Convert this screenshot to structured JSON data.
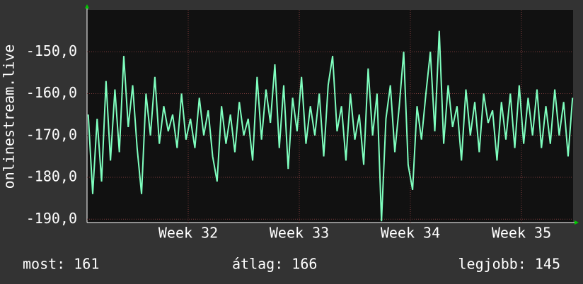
{
  "chart_data": {
    "type": "line",
    "y_label": "onlinestream.live",
    "x": [
      31.1,
      31.14,
      31.18,
      31.22,
      31.26,
      31.3,
      31.34,
      31.38,
      31.42,
      31.46,
      31.5,
      31.54,
      31.58,
      31.62,
      31.66,
      31.7,
      31.74,
      31.78,
      31.82,
      31.86,
      31.9,
      31.94,
      31.98,
      32.02,
      32.06,
      32.1,
      32.14,
      32.18,
      32.22,
      32.26,
      32.3,
      32.34,
      32.38,
      32.42,
      32.46,
      32.5,
      32.54,
      32.58,
      32.62,
      32.66,
      32.7,
      32.74,
      32.78,
      32.82,
      32.86,
      32.9,
      32.94,
      32.98,
      33.02,
      33.06,
      33.1,
      33.14,
      33.18,
      33.22,
      33.26,
      33.3,
      33.34,
      33.38,
      33.42,
      33.46,
      33.5,
      33.54,
      33.58,
      33.62,
      33.66,
      33.7,
      33.74,
      33.78,
      33.82,
      33.86,
      33.9,
      33.94,
      33.98,
      34.02,
      34.06,
      34.1,
      34.14,
      34.18,
      34.22,
      34.26,
      34.3,
      34.34,
      34.38,
      34.42,
      34.46,
      34.5,
      34.54,
      34.58,
      34.62,
      34.66,
      34.7,
      34.74,
      34.78,
      34.82,
      34.86,
      34.9,
      34.94,
      34.98,
      35.02,
      35.06,
      35.1,
      35.14,
      35.18,
      35.22,
      35.26,
      35.3,
      35.34,
      35.38,
      35.42,
      35.46
    ],
    "series": [
      {
        "color": "#7fffbf",
        "values": [
          -165,
          -184,
          -166,
          -181,
          -157,
          -176,
          -159,
          -174,
          -151,
          -168,
          -158,
          -173,
          -184,
          -160,
          -170,
          -156,
          -172,
          -163,
          -169,
          -165,
          -173,
          -160,
          -171,
          -166,
          -173,
          -161,
          -170,
          -164,
          -175,
          -181,
          -163,
          -172,
          -165,
          -174,
          -162,
          -170,
          -166,
          -176,
          -156,
          -171,
          -159,
          -167,
          -153,
          -173,
          -158,
          -178,
          -161,
          -169,
          -156,
          -172,
          -163,
          -170,
          -160,
          -175,
          -158,
          -151,
          -169,
          -163,
          -176,
          -160,
          -171,
          -165,
          -177,
          -154,
          -170,
          -160,
          -190.5,
          -166,
          -158,
          -174,
          -163,
          -150,
          -177,
          -183,
          -163,
          -171,
          -160,
          -150,
          -169,
          -145,
          -172,
          -158,
          -168,
          -163,
          -176,
          -159,
          -170,
          -162,
          -174,
          -160,
          -167,
          -164,
          -176,
          -162,
          -171,
          -160,
          -173,
          -158,
          -172,
          -161,
          -170,
          -159,
          -173,
          -163,
          -172,
          -159,
          -170,
          -162,
          -175,
          -161
        ]
      }
    ],
    "xlim": [
      31.089,
      35.465
    ],
    "ylim": [
      -190.8,
      -140
    ],
    "xticks": [
      {
        "value": 32,
        "label": "Week 32"
      },
      {
        "value": 33,
        "label": "Week 33"
      },
      {
        "value": 34,
        "label": "Week 34"
      },
      {
        "value": 35,
        "label": "Week 35"
      }
    ],
    "yticks": [
      {
        "value": -190,
        "label": "-190,0"
      },
      {
        "value": -180,
        "label": "-180,0"
      },
      {
        "value": -170,
        "label": "-170,0"
      },
      {
        "value": -160,
        "label": "-160,0"
      },
      {
        "value": -150,
        "label": "-150,0"
      }
    ],
    "grid": true,
    "footer": [
      "most: 161",
      "átlag: 166",
      "legjobb: 145"
    ]
  }
}
